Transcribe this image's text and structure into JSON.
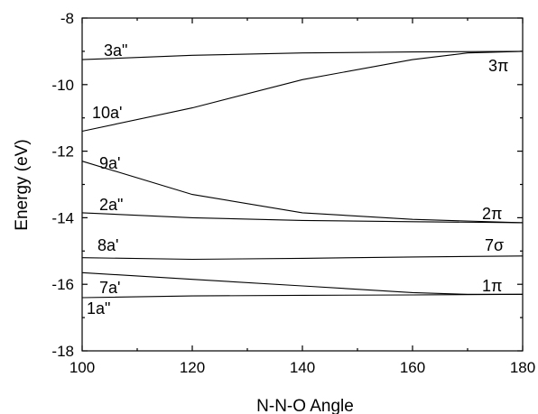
{
  "chart_data": {
    "type": "line",
    "xlabel": "N-N-O Angle",
    "ylabel": "Energy (eV)",
    "xlim": [
      100,
      180
    ],
    "ylim": [
      -18,
      -8
    ],
    "xticks": [
      100,
      120,
      140,
      160,
      180
    ],
    "yticks": [
      -18,
      -16,
      -14,
      -12,
      -10,
      -8
    ],
    "grid": false,
    "series": [
      {
        "name": "3a\"",
        "right_label": "3π",
        "x": [
          100,
          120,
          140,
          160,
          180
        ],
        "y": [
          -9.25,
          -9.12,
          -9.05,
          -9.02,
          -9.0
        ]
      },
      {
        "name": "10a'",
        "right_label": "",
        "x": [
          100,
          120,
          140,
          160,
          170,
          180
        ],
        "y": [
          -11.4,
          -10.7,
          -9.85,
          -9.25,
          -9.05,
          -9.0
        ]
      },
      {
        "name": "9a'",
        "right_label": "",
        "x": [
          100,
          120,
          140,
          160,
          180
        ],
        "y": [
          -12.3,
          -13.3,
          -13.85,
          -14.05,
          -14.15
        ]
      },
      {
        "name": "2a\"",
        "right_label": "2π",
        "x": [
          100,
          120,
          140,
          160,
          180
        ],
        "y": [
          -13.85,
          -14.0,
          -14.08,
          -14.12,
          -14.15
        ]
      },
      {
        "name": "8a'",
        "right_label": "7σ",
        "x": [
          100,
          120,
          140,
          160,
          180
        ],
        "y": [
          -15.2,
          -15.25,
          -15.22,
          -15.18,
          -15.15
        ]
      },
      {
        "name": "7a'",
        "right_label": "1π",
        "x": [
          100,
          120,
          140,
          160,
          170,
          180
        ],
        "y": [
          -15.65,
          -15.85,
          -16.05,
          -16.25,
          -16.3,
          -16.3
        ]
      },
      {
        "name": "1a\"",
        "right_label": "",
        "x": [
          100,
          120,
          140,
          160,
          180
        ],
        "y": [
          -16.4,
          -16.35,
          -16.33,
          -16.32,
          -16.3
        ]
      }
    ]
  }
}
